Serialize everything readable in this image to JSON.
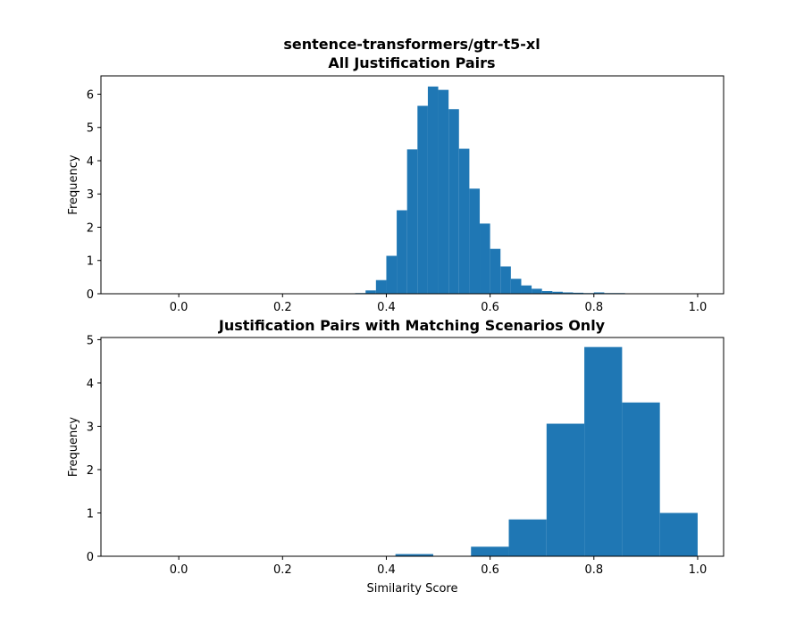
{
  "figure": {
    "suptitle": "sentence-transformers/gtr-t5-xl",
    "bar_color": "#1f77b4"
  },
  "chart_data": [
    {
      "type": "bar",
      "title": "All Justification Pairs",
      "xlabel": "",
      "ylabel": "Frequency",
      "xlim": [
        -0.15,
        1.05
      ],
      "ylim": [
        0,
        6.55
      ],
      "xticks": [
        0.0,
        0.2,
        0.4,
        0.6,
        0.8,
        1.0
      ],
      "xtick_labels": [
        "0.0",
        "0.2",
        "0.4",
        "0.6",
        "0.8",
        "1.0"
      ],
      "yticks": [
        0,
        1,
        2,
        3,
        4,
        5,
        6
      ],
      "ytick_labels": [
        "0",
        "1",
        "2",
        "3",
        "4",
        "5",
        "6"
      ],
      "grid": false,
      "bin_width": 0.02,
      "bins": [
        {
          "x0": 0.34,
          "value": 0.02
        },
        {
          "x0": 0.36,
          "value": 0.1
        },
        {
          "x0": 0.38,
          "value": 0.41
        },
        {
          "x0": 0.4,
          "value": 1.14
        },
        {
          "x0": 0.42,
          "value": 2.51
        },
        {
          "x0": 0.44,
          "value": 4.34
        },
        {
          "x0": 0.46,
          "value": 5.65
        },
        {
          "x0": 0.48,
          "value": 6.23
        },
        {
          "x0": 0.5,
          "value": 6.13
        },
        {
          "x0": 0.52,
          "value": 5.55
        },
        {
          "x0": 0.54,
          "value": 4.36
        },
        {
          "x0": 0.56,
          "value": 3.16
        },
        {
          "x0": 0.58,
          "value": 2.11
        },
        {
          "x0": 0.6,
          "value": 1.35
        },
        {
          "x0": 0.62,
          "value": 0.82
        },
        {
          "x0": 0.64,
          "value": 0.45
        },
        {
          "x0": 0.66,
          "value": 0.25
        },
        {
          "x0": 0.68,
          "value": 0.15
        },
        {
          "x0": 0.7,
          "value": 0.08
        },
        {
          "x0": 0.72,
          "value": 0.06
        },
        {
          "x0": 0.74,
          "value": 0.04
        },
        {
          "x0": 0.76,
          "value": 0.03
        },
        {
          "x0": 0.78,
          "value": 0.02
        },
        {
          "x0": 0.8,
          "value": 0.04
        },
        {
          "x0": 0.82,
          "value": 0.02
        },
        {
          "x0": 0.84,
          "value": 0.02
        },
        {
          "x0": 0.86,
          "value": 0.01
        },
        {
          "x0": 0.88,
          "value": 0.01
        }
      ]
    },
    {
      "type": "bar",
      "title": "Justification Pairs with Matching Scenarios Only",
      "xlabel": "Similarity Score",
      "ylabel": "Frequency",
      "xlim": [
        -0.15,
        1.05
      ],
      "ylim": [
        0,
        5.05
      ],
      "xticks": [
        0.0,
        0.2,
        0.4,
        0.6,
        0.8,
        1.0
      ],
      "xtick_labels": [
        "0.0",
        "0.2",
        "0.4",
        "0.6",
        "0.8",
        "1.0"
      ],
      "yticks": [
        0,
        1,
        2,
        3,
        4,
        5
      ],
      "ytick_labels": [
        "0",
        "1",
        "2",
        "3",
        "4",
        "5"
      ],
      "grid": false,
      "bin_width": 0.0728,
      "bins": [
        {
          "x0": 0.4176,
          "value": 0.05
        },
        {
          "x0": 0.4904,
          "value": 0.01
        },
        {
          "x0": 0.5632,
          "value": 0.22
        },
        {
          "x0": 0.636,
          "value": 0.85
        },
        {
          "x0": 0.7088,
          "value": 3.06
        },
        {
          "x0": 0.7816,
          "value": 4.83
        },
        {
          "x0": 0.8544,
          "value": 3.55
        },
        {
          "x0": 0.9272,
          "value": 1.0
        }
      ]
    }
  ]
}
